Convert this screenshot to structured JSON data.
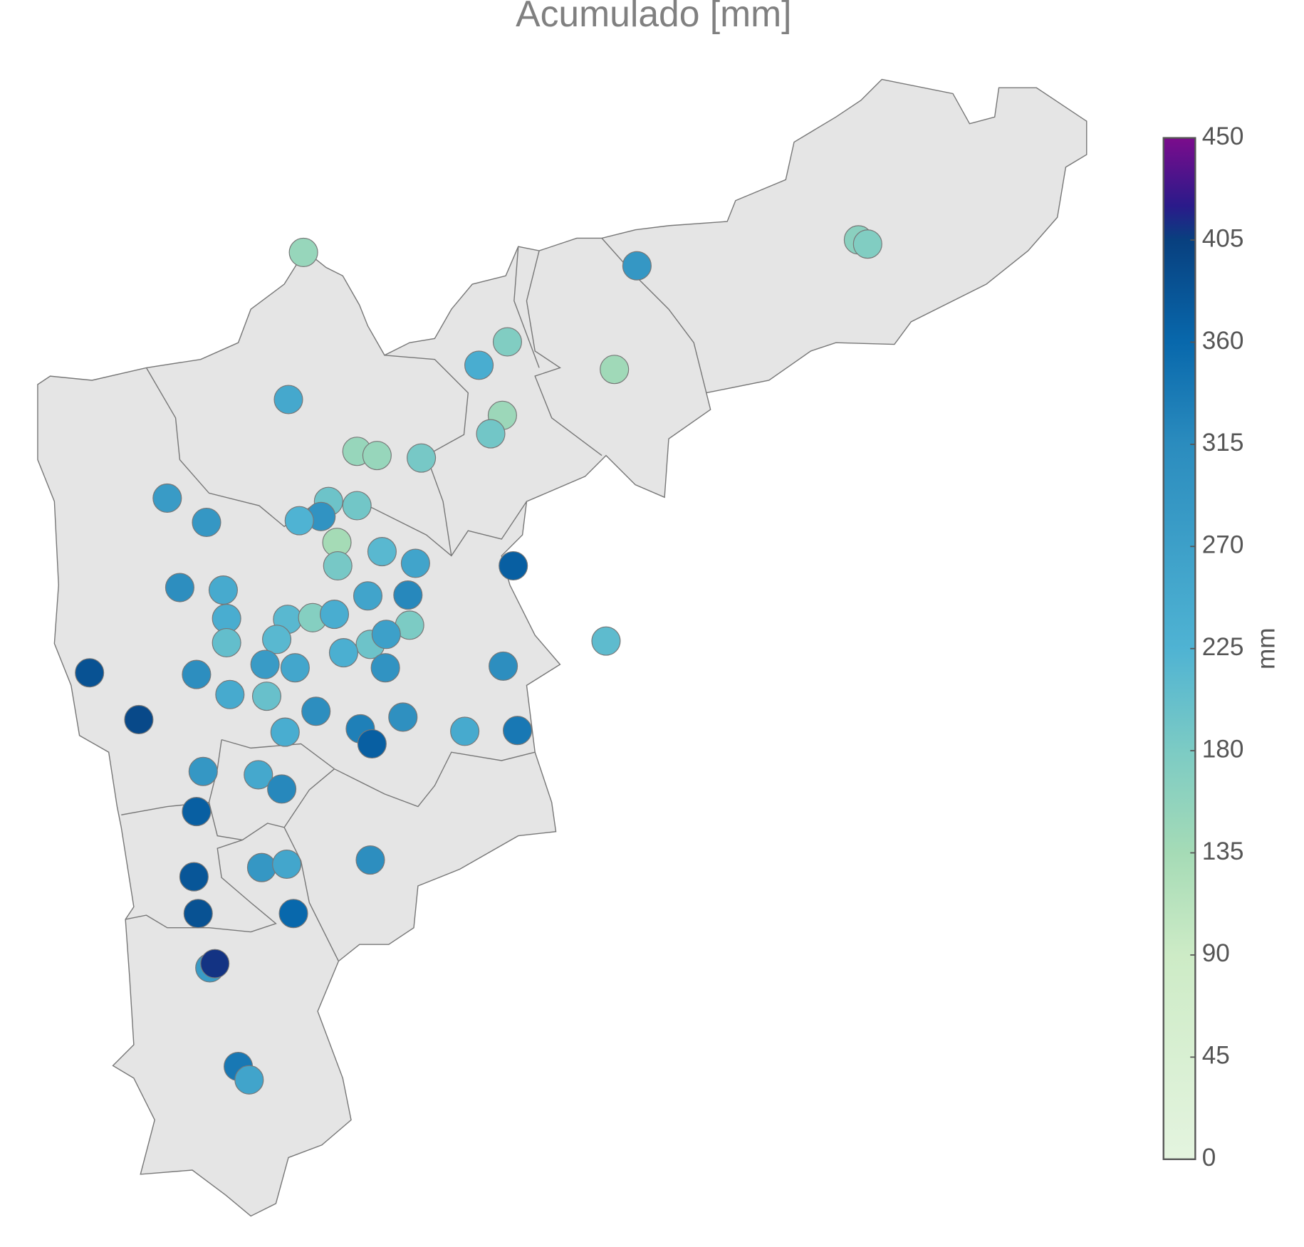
{
  "chart_data": {
    "type": "map",
    "title": "Acumulado [mm]",
    "colorbar_label": "mm",
    "clim": [
      0,
      450
    ],
    "cticks": [
      0,
      45,
      90,
      135,
      180,
      225,
      270,
      315,
      360,
      405,
      450
    ],
    "colorscale": [
      [
        0,
        "#e4f4df"
      ],
      [
        90,
        "#cdebc6"
      ],
      [
        135,
        "#a5dbb6"
      ],
      [
        180,
        "#7ccbc4"
      ],
      [
        225,
        "#4fb3d3"
      ],
      [
        315,
        "#2b8cbe"
      ],
      [
        360,
        "#0868ac"
      ],
      [
        405,
        "#08407f"
      ],
      [
        420,
        "#2a1a8a"
      ],
      [
        450,
        "#7b0c8c"
      ]
    ],
    "values": [
      150,
      290,
      165,
      175,
      175,
      240,
      140,
      250,
      145,
      190,
      150,
      150,
      185,
      280,
      290,
      195,
      190,
      300,
      225,
      135,
      215,
      260,
      185,
      370,
      310,
      245,
      260,
      320,
      240,
      215,
      170,
      240,
      180,
      205,
      215,
      195,
      270,
      235,
      280,
      255,
      300,
      310,
      210,
      385,
      310,
      245,
      200,
      310,
      305,
      395,
      240,
      330,
      370,
      245,
      340,
      290,
      250,
      320,
      370,
      310,
      290,
      255,
      380,
      385,
      360,
      280,
      410,
      340,
      260
    ]
  }
}
